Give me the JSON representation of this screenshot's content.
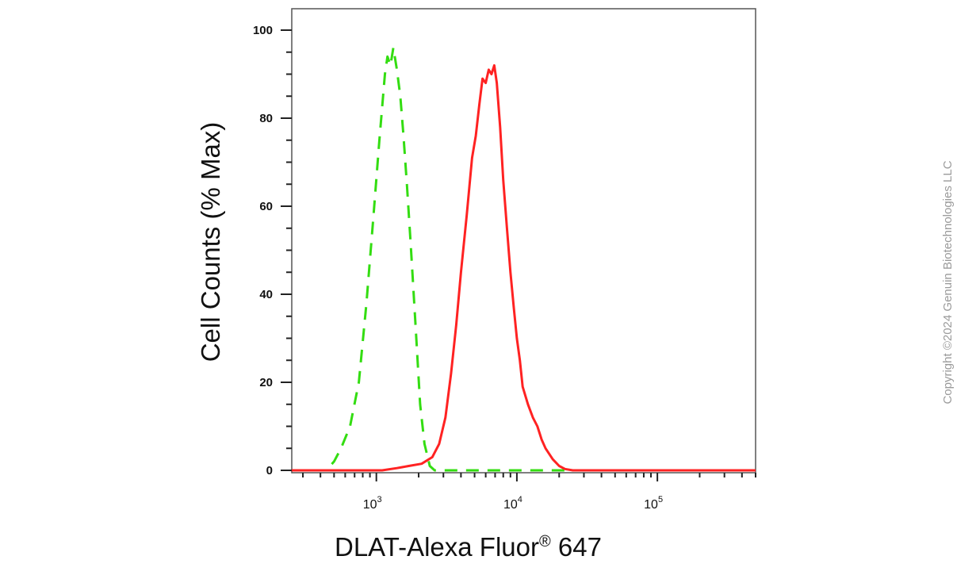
{
  "chart_data": {
    "type": "line",
    "xlabel_main": "DLAT-Alexa Fluor",
    "xlabel_sup": "®",
    "xlabel_end": " 647",
    "ylabel": "Cell Counts (% Max)",
    "x_scale": "log",
    "xlim": [
      250,
      500000
    ],
    "ylim": [
      0,
      100
    ],
    "yticks": [
      0,
      20,
      40,
      60,
      80,
      100
    ],
    "yticks_text": [
      "0",
      "20",
      "40",
      "60",
      "80",
      "100"
    ],
    "xticks": [
      {
        "value": 1000,
        "base": "10",
        "exp": "3"
      },
      {
        "value": 10000,
        "base": "10",
        "exp": "4"
      },
      {
        "value": 100000,
        "base": "10",
        "exp": "5"
      }
    ],
    "series": [
      {
        "color": "#33dd11",
        "style": "dashed",
        "x": [
          250,
          440,
          500,
          560,
          650,
          750,
          850,
          950,
          1050,
          1150,
          1200,
          1260,
          1320,
          1400,
          1480,
          1560,
          1650,
          1750,
          1900,
          2050,
          2200,
          2400,
          2600,
          3000,
          500000
        ],
        "y": [
          0,
          0,
          2,
          5,
          10,
          20,
          38,
          57,
          75,
          90,
          94,
          92,
          96,
          91,
          85,
          76,
          65,
          52,
          33,
          15,
          6,
          1,
          0,
          0,
          0
        ]
      },
      {
        "color": "#ff2222",
        "style": "solid",
        "x": [
          250,
          1100,
          1400,
          1700,
          2100,
          2500,
          2800,
          3100,
          3400,
          3700,
          4000,
          4400,
          4800,
          5100,
          5400,
          5700,
          6000,
          6300,
          6600,
          6900,
          7200,
          7600,
          8000,
          8500,
          9000,
          9500,
          10000,
          10500,
          11000,
          12000,
          13000,
          14000,
          15000,
          16000,
          18000,
          20000,
          22000,
          25000,
          30000,
          500000
        ],
        "y": [
          0,
          0,
          0.5,
          1,
          1.5,
          3,
          6,
          12,
          22,
          33,
          45,
          58,
          71,
          76,
          83,
          89,
          88,
          91,
          90,
          92,
          88,
          78,
          66,
          55,
          45,
          37,
          30,
          25,
          19,
          15,
          12,
          10,
          7,
          5,
          2.5,
          1,
          0.3,
          0,
          0,
          0
        ]
      }
    ]
  },
  "copyright": "Copyright ©2024 Genuin Biotechnologies LLC"
}
